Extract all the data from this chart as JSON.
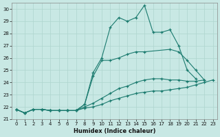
{
  "xlabel": "Humidex (Indice chaleur)",
  "color": "#1a7a6e",
  "bg_color": "#c8e8e4",
  "grid_color": "#aed4ce",
  "ylim": [
    21.0,
    30.5
  ],
  "xlim": [
    -0.5,
    23.5
  ],
  "yticks": [
    21,
    22,
    23,
    24,
    25,
    26,
    27,
    28,
    29,
    30
  ],
  "xticks": [
    0,
    1,
    2,
    3,
    4,
    5,
    6,
    7,
    8,
    9,
    10,
    11,
    12,
    13,
    14,
    15,
    16,
    17,
    18,
    19,
    20,
    21,
    22,
    23
  ],
  "line1_x": [
    0,
    1,
    2,
    3,
    4,
    5,
    6,
    7,
    8,
    9,
    10,
    11,
    12,
    13,
    14,
    15,
    16,
    17,
    18,
    19,
    20,
    21
  ],
  "line1_y": [
    21.8,
    21.5,
    21.8,
    21.8,
    21.7,
    21.7,
    21.7,
    21.7,
    22.2,
    24.8,
    26.0,
    28.5,
    29.3,
    29.0,
    29.3,
    30.3,
    28.1,
    28.1,
    28.3,
    27.0,
    25.0,
    24.3
  ],
  "line2_x": [
    0,
    1,
    2,
    3,
    4,
    5,
    6,
    7,
    8,
    9,
    10,
    11,
    12,
    13,
    14,
    15,
    18,
    19,
    20,
    21,
    22
  ],
  "line2_y": [
    21.8,
    21.5,
    21.8,
    21.8,
    21.7,
    21.7,
    21.7,
    21.7,
    22.2,
    24.5,
    25.8,
    25.8,
    26.0,
    26.3,
    26.5,
    26.5,
    26.7,
    26.5,
    25.8,
    25.0,
    24.2
  ],
  "line3_x": [
    0,
    1,
    2,
    3,
    4,
    5,
    6,
    7,
    8,
    9,
    10,
    11,
    12,
    13,
    14,
    15,
    16,
    17,
    18,
    19,
    20,
    21,
    22
  ],
  "line3_y": [
    21.8,
    21.5,
    21.8,
    21.8,
    21.7,
    21.7,
    21.7,
    21.7,
    22.0,
    22.3,
    22.7,
    23.1,
    23.5,
    23.7,
    24.0,
    24.2,
    24.3,
    24.3,
    24.2,
    24.2,
    24.1,
    24.1,
    24.2
  ],
  "line4_x": [
    0,
    1,
    2,
    3,
    4,
    5,
    6,
    7,
    8,
    9,
    10,
    11,
    12,
    13,
    14,
    15,
    16,
    17,
    18,
    19,
    20,
    21,
    22,
    23
  ],
  "line4_y": [
    21.8,
    21.5,
    21.8,
    21.8,
    21.7,
    21.7,
    21.7,
    21.7,
    21.9,
    22.0,
    22.2,
    22.5,
    22.7,
    22.9,
    23.1,
    23.2,
    23.3,
    23.3,
    23.4,
    23.5,
    23.6,
    23.8,
    24.0,
    24.2
  ]
}
